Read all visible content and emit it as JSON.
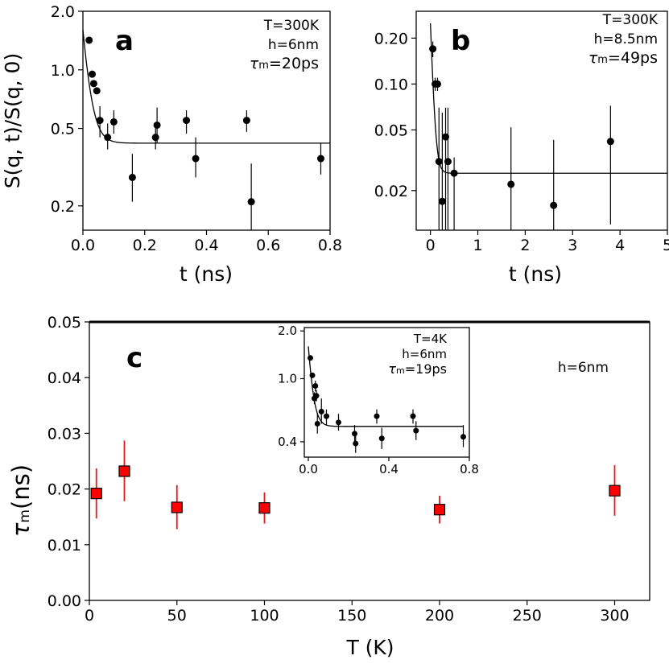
{
  "chart_data": [
    {
      "id": "a",
      "type": "scatter",
      "panel_label": "a",
      "xlabel": "t (ns)",
      "ylabel": "S(q, t)/S(q, 0)",
      "xlim": [
        0.0,
        0.8
      ],
      "ylim": [
        0.15,
        2.0
      ],
      "yscale": "log",
      "xticks": [
        0.0,
        0.2,
        0.4,
        0.6,
        0.8
      ],
      "xtick_labels": [
        "0.0",
        "0.2",
        "0.4",
        "0.6",
        "0.8"
      ],
      "yticks": [
        2.0,
        1.0,
        0.5,
        0.2
      ],
      "ytick_labels": [
        "2.0",
        "1.0",
        "0.5",
        "0.2"
      ],
      "annotation": [
        "T=300K",
        "h=6nm",
        "τm=20ps"
      ],
      "fit": {
        "A": 1.6,
        "C": 0.42,
        "tau": 0.02
      },
      "points": [
        {
          "x": 0.02,
          "y": 1.42,
          "lo": 1.42,
          "hi": 1.42
        },
        {
          "x": 0.03,
          "y": 0.95,
          "lo": 0.95,
          "hi": 0.95
        },
        {
          "x": 0.035,
          "y": 0.85,
          "lo": 0.85,
          "hi": 0.85
        },
        {
          "x": 0.045,
          "y": 0.78,
          "lo": 0.78,
          "hi": 0.78
        },
        {
          "x": 0.055,
          "y": 0.55,
          "lo": 0.45,
          "hi": 0.65
        },
        {
          "x": 0.08,
          "y": 0.45,
          "lo": 0.39,
          "hi": 0.53
        },
        {
          "x": 0.1,
          "y": 0.54,
          "lo": 0.47,
          "hi": 0.62
        },
        {
          "x": 0.16,
          "y": 0.28,
          "lo": 0.21,
          "hi": 0.37
        },
        {
          "x": 0.235,
          "y": 0.45,
          "lo": 0.39,
          "hi": 0.52
        },
        {
          "x": 0.24,
          "y": 0.52,
          "lo": 0.42,
          "hi": 0.64
        },
        {
          "x": 0.335,
          "y": 0.55,
          "lo": 0.47,
          "hi": 0.62
        },
        {
          "x": 0.365,
          "y": 0.35,
          "lo": 0.28,
          "hi": 0.45
        },
        {
          "x": 0.53,
          "y": 0.55,
          "lo": 0.48,
          "hi": 0.62
        },
        {
          "x": 0.545,
          "y": 0.21,
          "lo": 0.15,
          "hi": 0.33
        },
        {
          "x": 0.77,
          "y": 0.35,
          "lo": 0.29,
          "hi": 0.42
        }
      ]
    },
    {
      "id": "b",
      "type": "scatter",
      "panel_label": "b",
      "xlabel": "t (ns)",
      "ylabel": "",
      "xlim": [
        -0.3,
        5.0
      ],
      "ylim": [
        0.011,
        0.3
      ],
      "yscale": "log",
      "xticks": [
        0,
        1,
        2,
        3,
        4,
        5
      ],
      "xtick_labels": [
        "0",
        "1",
        "2",
        "3",
        "4",
        "5"
      ],
      "yticks": [
        0.2,
        0.1,
        0.05,
        0.02
      ],
      "ytick_labels": [
        "0.20",
        "0.10",
        "0.05",
        "0.02"
      ],
      "annotation": [
        "T=300K",
        "h=8.5nm",
        "τm=49ps"
      ],
      "fit": {
        "A": 0.25,
        "C": 0.026,
        "tau": 0.049
      },
      "points": [
        {
          "x": 0.05,
          "y": 0.17,
          "lo": 0.15,
          "hi": 0.19
        },
        {
          "x": 0.1,
          "y": 0.1,
          "lo": 0.09,
          "hi": 0.11
        },
        {
          "x": 0.15,
          "y": 0.1,
          "lo": 0.09,
          "hi": 0.11
        },
        {
          "x": 0.18,
          "y": 0.031,
          "lo": 0.011,
          "hi": 0.07
        },
        {
          "x": 0.25,
          "y": 0.017,
          "lo": 0.011,
          "hi": 0.065
        },
        {
          "x": 0.32,
          "y": 0.045,
          "lo": 0.011,
          "hi": 0.07
        },
        {
          "x": 0.37,
          "y": 0.031,
          "lo": 0.011,
          "hi": 0.07
        },
        {
          "x": 0.5,
          "y": 0.026,
          "lo": 0.011,
          "hi": 0.033
        },
        {
          "x": 1.7,
          "y": 0.022,
          "lo": 0.011,
          "hi": 0.052
        },
        {
          "x": 2.6,
          "y": 0.016,
          "lo": 0.011,
          "hi": 0.043
        },
        {
          "x": 3.8,
          "y": 0.042,
          "lo": 0.012,
          "hi": 0.072
        }
      ]
    },
    {
      "id": "c",
      "type": "scatter",
      "panel_label": "c",
      "xlabel": "T (K)",
      "ylabel": "τm(ns)",
      "xlim": [
        0,
        320
      ],
      "ylim": [
        0.0,
        0.05
      ],
      "xticks": [
        0,
        50,
        100,
        150,
        200,
        250,
        300
      ],
      "xtick_labels": [
        "0",
        "50",
        "100",
        "150",
        "200",
        "250",
        "300"
      ],
      "yticks": [
        0.0,
        0.01,
        0.02,
        0.03,
        0.04,
        0.05
      ],
      "ytick_labels": [
        "0.00",
        "0.01",
        "0.02",
        "0.03",
        "0.04",
        "0.05"
      ],
      "annotation": [
        "h=6nm"
      ],
      "marker_color": "#ff0000",
      "errbar_color": "#e31a1c",
      "points": [
        {
          "x": 4,
          "y": 0.0192,
          "lo": 0.0147,
          "hi": 0.0237
        },
        {
          "x": 20,
          "y": 0.0232,
          "lo": 0.0178,
          "hi": 0.0287
        },
        {
          "x": 50,
          "y": 0.0167,
          "lo": 0.0128,
          "hi": 0.0207
        },
        {
          "x": 100,
          "y": 0.0166,
          "lo": 0.0138,
          "hi": 0.0194
        },
        {
          "x": 200,
          "y": 0.0163,
          "lo": 0.0138,
          "hi": 0.0188
        },
        {
          "x": 300,
          "y": 0.0197,
          "lo": 0.0152,
          "hi": 0.0243
        }
      ]
    },
    {
      "id": "c-inset",
      "type": "scatter",
      "xlabel": "",
      "ylabel": "",
      "xlim": [
        -0.02,
        0.8
      ],
      "ylim": [
        0.32,
        2.1
      ],
      "yscale": "log",
      "xticks": [
        0.0,
        0.4,
        0.8
      ],
      "xtick_labels": [
        "0.0",
        "0.4",
        "0.8"
      ],
      "yticks": [
        2.0,
        1.0,
        0.4
      ],
      "ytick_labels": [
        "2.0",
        "1.0",
        "0.4"
      ],
      "annotation": [
        "T=4K",
        "h=6nm",
        "τm=19ps"
      ],
      "fit": {
        "A": 1.6,
        "C": 0.5,
        "tau": 0.019
      },
      "points": [
        {
          "x": 0.01,
          "y": 1.35,
          "lo": 1.35,
          "hi": 1.35
        },
        {
          "x": 0.02,
          "y": 1.05,
          "lo": 1.05,
          "hi": 1.05
        },
        {
          "x": 0.03,
          "y": 0.75,
          "lo": 0.69,
          "hi": 0.82
        },
        {
          "x": 0.035,
          "y": 0.9,
          "lo": 0.83,
          "hi": 0.97
        },
        {
          "x": 0.04,
          "y": 0.78,
          "lo": 0.72,
          "hi": 0.85
        },
        {
          "x": 0.045,
          "y": 0.52,
          "lo": 0.45,
          "hi": 0.6
        },
        {
          "x": 0.065,
          "y": 0.62,
          "lo": 0.52,
          "hi": 0.75
        },
        {
          "x": 0.09,
          "y": 0.58,
          "lo": 0.51,
          "hi": 0.64
        },
        {
          "x": 0.15,
          "y": 0.53,
          "lo": 0.47,
          "hi": 0.6
        },
        {
          "x": 0.23,
          "y": 0.45,
          "lo": 0.4,
          "hi": 0.51
        },
        {
          "x": 0.235,
          "y": 0.39,
          "lo": 0.34,
          "hi": 0.46
        },
        {
          "x": 0.34,
          "y": 0.58,
          "lo": 0.52,
          "hi": 0.64
        },
        {
          "x": 0.365,
          "y": 0.42,
          "lo": 0.36,
          "hi": 0.49
        },
        {
          "x": 0.52,
          "y": 0.58,
          "lo": 0.52,
          "hi": 0.64
        },
        {
          "x": 0.535,
          "y": 0.47,
          "lo": 0.41,
          "hi": 0.54
        },
        {
          "x": 0.77,
          "y": 0.43,
          "lo": 0.37,
          "hi": 0.51
        }
      ]
    }
  ]
}
